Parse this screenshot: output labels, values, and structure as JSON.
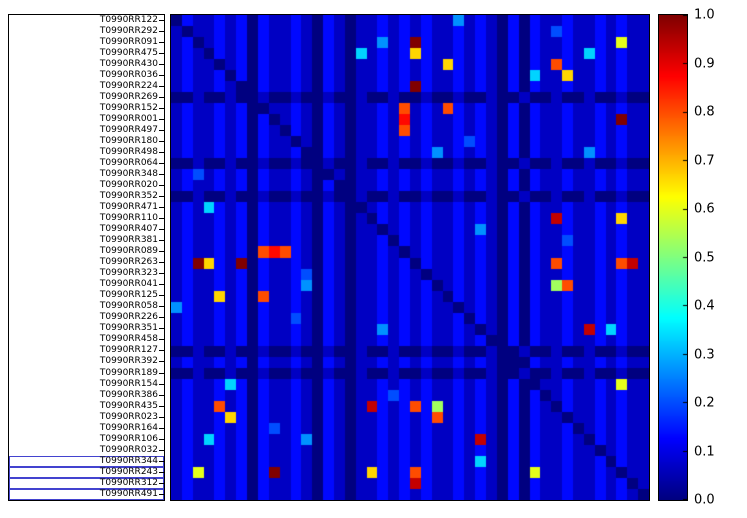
{
  "colors": {
    "background": "#ffffff",
    "frame": "#000000",
    "highlight_box": "#4343cf"
  },
  "row_labels": [
    "T0990RR122",
    "T0990RR292",
    "T0990RR091",
    "T0990RR475",
    "T0990RR430",
    "T0990RR036",
    "T0990RR224",
    "T0990RR269",
    "T0990RR152",
    "T0990RR001",
    "T0990RR497",
    "T0990RR180",
    "T0990RR498",
    "T0990RR064",
    "T0990RR348",
    "T0990RR020",
    "T0990RR352",
    "T0990RR471",
    "T0990RR110",
    "T0990RR407",
    "T0990RR381",
    "T0990RR089",
    "T0990RR263",
    "T0990RR323",
    "T0990RR041",
    "T0990RR125",
    "T0990RR058",
    "T0990RR226",
    "T0990RR351",
    "T0990RR458",
    "T0990RR127",
    "T0990RR392",
    "T0990RR189",
    "T0990RR154",
    "T0990RR386",
    "T0990RR435",
    "T0990RR023",
    "T0990RR164",
    "T0990RR106",
    "T0990RR032",
    "T0990RR344",
    "T0990RR243",
    "T0990RR312",
    "T0990RR491"
  ],
  "highlighted_labels": [
    "T0990RR344",
    "T0990RR243",
    "T0990RR312",
    "T0990RR491"
  ],
  "colorbar": {
    "ticks_top_to_bottom": [
      "1.0",
      "0.9",
      "0.8",
      "0.7",
      "0.6",
      "0.5",
      "0.4",
      "0.3",
      "0.2",
      "0.1",
      "0.0"
    ],
    "min": 0.0,
    "max": 1.0,
    "colormap": "jet"
  },
  "chart_data": {
    "type": "heatmap",
    "colormap": "jet",
    "vmin": 0.0,
    "vmax": 1.0,
    "grid": false,
    "x_axis_labels_visible": false,
    "rows": "44 targets listed in row_labels (same order); diagonal cells are 0; matrix approximately symmetric",
    "values_encoding": "each hex digit d (0-F) encodes value d/15; spaces are separators only",
    "matrix": [
      "02112120211 21021011212 12114121020 21121121211",
      "10112120211 21021011212 12112121020 21321121211",
      "12012120211 21021011412 F2112121020 21121121911",
      "12102120211 21021051212 A2112121020 21121521211",
      "12110120211 21021011212 121A2121020 21C21121211",
      "12112020211 21021011212 12112121020 511A1121211",
      "12112100211 21021011212 F2112121020 21121121211",
      "00100100100 10010010010 01001001001 00100100100",
      "12112120011 2102101121C 121C2121020 21121121211",
      "12112120201 2102101121D 12112121020 21121121F11",
      "12112120210 2102101121C 12112121020 21121121211",
      "12112120211 01021011212 12112321020 21121121211",
      "12112120211 20021011212 12412121020 21121421211",
      "00100100100 10010010010 01001001001 00100100100",
      "12312120211 21001011212 12112121020 21121121211",
      "12112120211 21020011212 12112121020 21121121211",
      "00100100100 10010010010 01001001001 00100100100",
      "12152120211 21021001212 12112121020 21121121211",
      "12112120211 21021010212 12112121020 21E21121A11",
      "12112120211 21021011012 12112141020 21121121211",
      "12112120211 21021011202 12112121020 21131121211",
      "12112120CDC 21021011210 12112121020 21121121211",
      "12FA21F0211 21021011212 02112121020 21C21121CE1",
      "12112120211 23021011212 10112121020 21121121211",
      "12112120211 24021011212 12012121020 218C1121211",
      "1211A120C11 21021011212 12102121020 21121121211",
      "42112120211 21021011212 12110121020 21121121211",
      "12112120211 31021011212 12112021020 21121121211",
      "12112120211 21021011412 12112101020 21121E25211",
      "12112120211 21021011212 12112120020 21121121211",
      "00100100100 10010010010 01001001001 00100100100",
      "12112120211 21021011212 12112121000 21121121211",
      "00100100100 10010010010 01001001001 00100100100",
      "12112520211 21021011212 12112121020 01121121911",
      "12112120211 21021011232 12112121020 20121121211",
      "1211C120211 2102101E212 C2812121020 21021121211",
      "12112A20211 21021011212 12C12121020 21101121211",
      "12112120231 21021011212 12112121020 21120121211",
      "12152120211 24021011212 121121E1020 21121021211",
      "12112120211 21021011212 12112121020 21121101211",
      "12112120211 21021011212 12112151020 21121120211",
      "129121202F1 2102101A212 C2112121020 91121121011",
      "12112120211 21021011212 E2112121020 21121121201",
      "12112120211 21021011212 12112121020 21121121210"
    ]
  }
}
